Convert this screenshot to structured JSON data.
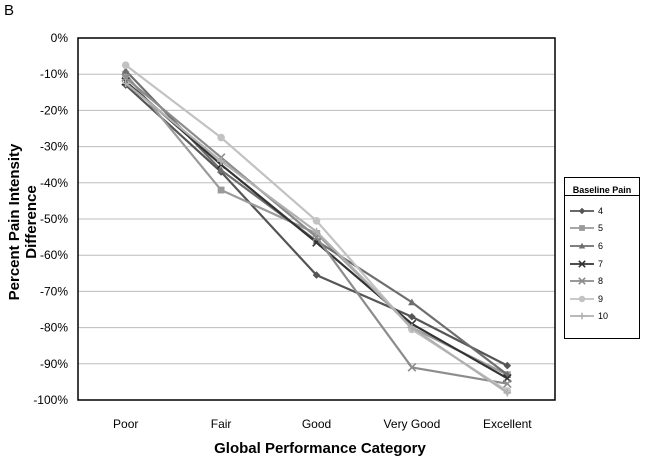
{
  "panel_label": "B",
  "chart_data": {
    "type": "line",
    "title": "",
    "xlabel": "Global Performance Category",
    "ylabel": "Percent  Pain Intensity Difference",
    "categories": [
      "Poor",
      "Fair",
      "Good",
      "Very Good",
      "Excellent"
    ],
    "ylim": [
      -100,
      0
    ],
    "yticks": [
      0,
      -10,
      -20,
      -30,
      -40,
      -50,
      -60,
      -70,
      -80,
      -90,
      -100
    ],
    "ytick_labels": [
      "0%",
      "-10%",
      "-20%",
      "-30%",
      "-40%",
      "-50%",
      "-60%",
      "-70%",
      "-80%",
      "-90%",
      "-100%"
    ],
    "grid": true,
    "legend": {
      "title": "Baseline Pain",
      "placement": "right"
    },
    "series": [
      {
        "name": "4",
        "color": "#555555",
        "marker": "diamond",
        "values": [
          -13,
          -37,
          -65.5,
          -77,
          -90.5
        ]
      },
      {
        "name": "5",
        "color": "#9a9a9a",
        "marker": "square",
        "values": [
          -10,
          -42,
          -54,
          -80,
          -93
        ]
      },
      {
        "name": "6",
        "color": "#6e6e6e",
        "marker": "triangle",
        "values": [
          -9,
          -36.5,
          -56,
          -73,
          -93
        ]
      },
      {
        "name": "7",
        "color": "#333333",
        "marker": "x",
        "values": [
          -12,
          -35,
          -56.5,
          -79,
          -94
        ]
      },
      {
        "name": "8",
        "color": "#8c8c8c",
        "marker": "x",
        "values": [
          -11,
          -33,
          -55,
          -91,
          -95.5
        ]
      },
      {
        "name": "9",
        "color": "#c2c2c2",
        "marker": "circle",
        "values": [
          -7.5,
          -27.5,
          -50.5,
          -80.5,
          -97.5
        ]
      },
      {
        "name": "10",
        "color": "#b0b0b0",
        "marker": "plus",
        "values": [
          -12.5,
          -34,
          -53.5,
          -80,
          -98
        ]
      }
    ]
  }
}
